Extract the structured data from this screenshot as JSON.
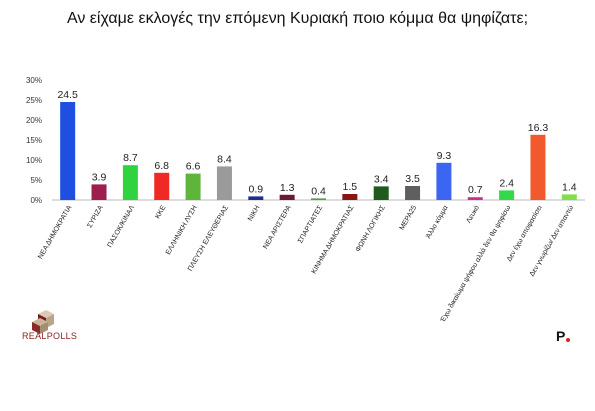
{
  "title": "Αν είχαμε εκλογές την επόμενη Κυριακή ποιο κόμμα θα ψηφίζατε;",
  "logo": {
    "text": "REALPOLLS"
  },
  "brand": {
    "mark": "P"
  },
  "chart_data": {
    "type": "bar",
    "ylim": [
      0,
      30
    ],
    "yticks": [
      "0%",
      "5%",
      "10%",
      "15%",
      "20%",
      "25%",
      "30%"
    ],
    "grid": false,
    "categories": [
      "ΝΕΑ ΔΗΜΟΚΡΑΤΙΑ",
      "ΣΥΡΙΖΑ",
      "ΠΑΣΟΚ/ΚΙΝΑΛ",
      "ΚΚΕ",
      "ΕΛΛΗΝΙΚΗ ΛΥΣΗ",
      "ΠΛΕΥΣΗ ΕΛΕΥΘΕΡΙΑΣ",
      "ΝΙΚΗ",
      "ΝΕΑ ΑΡΙΣΤΕΡΑ",
      "ΣΠΑΡΤΙΑΤΕΣ",
      "ΚΙΝΗΜΑ ΔΗΜΟΚΡΑΤΙΑΣ",
      "ΦΩΝΗ ΛΟΓΙΚΗΣ",
      "ΜΕΡΑ25",
      "Άλλο κόμμα",
      "Λευκό",
      "Έχω δικαίωμα ψήφου αλλά δεν θα ψηφίσω",
      "Δεν έχω αποφασίσει",
      "Δεν γνωρίζω/ Δεν απαντώ"
    ],
    "values": [
      24.5,
      3.9,
      8.7,
      6.8,
      6.6,
      8.4,
      0.9,
      1.3,
      0.4,
      1.5,
      3.4,
      3.5,
      9.3,
      0.7,
      2.4,
      16.3,
      1.4
    ],
    "value_labels": [
      "24.5",
      "3.9",
      "8.7",
      "6.8",
      "6.6",
      "8.4",
      "0.9",
      "1.3",
      "0.4",
      "1.5",
      "3.4",
      "3.5",
      "9.3",
      "0.7",
      "2.4",
      "16.3",
      "1.4"
    ],
    "colors": [
      "#1f4fe0",
      "#9c1f4e",
      "#2fd33f",
      "#ef2a24",
      "#5fb53c",
      "#9a9a9a",
      "#1d2f8a",
      "#6d1a3a",
      "#3ea54a",
      "#8a1414",
      "#1f5a1f",
      "#5f5f5f",
      "#3a66f2",
      "#c8328a",
      "#34d94a",
      "#f25a2e",
      "#7de04a"
    ]
  }
}
